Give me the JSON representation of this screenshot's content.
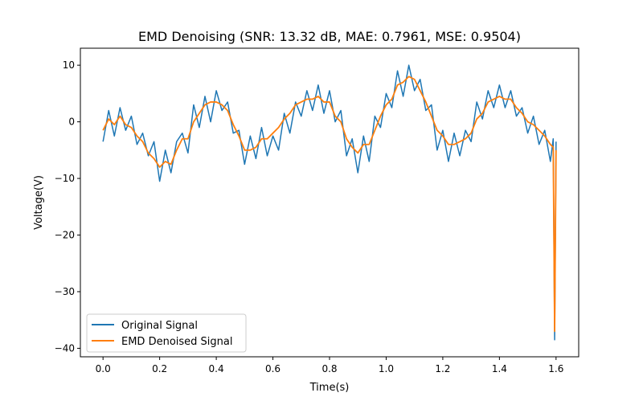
{
  "chart_data": {
    "type": "line",
    "title": "EMD Denoising (SNR: 13.32 dB, MAE: 0.7961, MSE: 0.9504)",
    "xlabel": "Time(s)",
    "ylabel": "Voltage(V)",
    "xlim": [
      -0.08,
      1.68
    ],
    "ylim": [
      -41.5,
      13
    ],
    "xticks": [
      0.0,
      0.2,
      0.4,
      0.6,
      0.8,
      1.0,
      1.2,
      1.4,
      1.6
    ],
    "xtick_labels": [
      "0.0",
      "0.2",
      "0.4",
      "0.6",
      "0.8",
      "1.0",
      "1.2",
      "1.4",
      "1.6"
    ],
    "yticks": [
      10,
      0,
      -10,
      -20,
      -30,
      -40
    ],
    "ytick_labels": [
      "10",
      "0",
      "−10",
      "−20",
      "−30",
      "−40"
    ],
    "grid": false,
    "legend_position": "lower-left",
    "series": [
      {
        "name": "Original Signal",
        "color": "#1f77b4",
        "x": [
          0.0,
          0.02,
          0.04,
          0.06,
          0.08,
          0.1,
          0.12,
          0.14,
          0.16,
          0.18,
          0.2,
          0.22,
          0.24,
          0.26,
          0.28,
          0.3,
          0.32,
          0.34,
          0.36,
          0.38,
          0.4,
          0.42,
          0.44,
          0.46,
          0.48,
          0.5,
          0.52,
          0.54,
          0.56,
          0.58,
          0.6,
          0.62,
          0.64,
          0.66,
          0.68,
          0.7,
          0.72,
          0.74,
          0.76,
          0.78,
          0.8,
          0.82,
          0.84,
          0.86,
          0.88,
          0.9,
          0.92,
          0.94,
          0.96,
          0.98,
          1.0,
          1.02,
          1.04,
          1.06,
          1.08,
          1.1,
          1.12,
          1.14,
          1.16,
          1.18,
          1.2,
          1.22,
          1.24,
          1.26,
          1.28,
          1.3,
          1.32,
          1.34,
          1.36,
          1.38,
          1.4,
          1.42,
          1.44,
          1.46,
          1.48,
          1.5,
          1.52,
          1.54,
          1.56,
          1.58,
          1.59,
          1.595,
          1.6
        ],
        "y": [
          -3.5,
          2.0,
          -2.5,
          2.5,
          -1.5,
          1.0,
          -4.0,
          -2.0,
          -6.0,
          -3.5,
          -10.5,
          -5.0,
          -9.0,
          -3.5,
          -2.0,
          -5.5,
          3.0,
          -1.0,
          4.5,
          0.0,
          5.5,
          2.0,
          3.5,
          -2.0,
          -1.5,
          -7.5,
          -2.5,
          -6.5,
          -1.0,
          -6.0,
          -2.5,
          -5.0,
          1.5,
          -2.0,
          3.5,
          1.0,
          5.5,
          2.0,
          6.5,
          1.5,
          5.5,
          0.0,
          2.0,
          -6.0,
          -3.0,
          -9.0,
          -2.5,
          -7.0,
          1.0,
          -1.0,
          5.0,
          2.5,
          9.0,
          4.5,
          10.0,
          5.5,
          7.5,
          2.0,
          3.0,
          -5.0,
          -1.5,
          -7.0,
          -2.0,
          -6.0,
          -1.5,
          -3.5,
          3.5,
          0.5,
          5.5,
          2.5,
          6.5,
          2.5,
          5.5,
          1.0,
          2.5,
          -2.0,
          1.0,
          -4.0,
          -1.5,
          -7.0,
          -3.0,
          -38.5,
          -3.5
        ]
      },
      {
        "name": "EMD Denoised Signal",
        "color": "#ff7f0e",
        "x": [
          0.0,
          0.02,
          0.04,
          0.06,
          0.08,
          0.1,
          0.12,
          0.14,
          0.16,
          0.18,
          0.2,
          0.22,
          0.24,
          0.26,
          0.28,
          0.3,
          0.32,
          0.34,
          0.36,
          0.38,
          0.4,
          0.42,
          0.44,
          0.46,
          0.48,
          0.5,
          0.52,
          0.54,
          0.56,
          0.58,
          0.6,
          0.62,
          0.64,
          0.66,
          0.68,
          0.7,
          0.72,
          0.74,
          0.76,
          0.78,
          0.8,
          0.82,
          0.84,
          0.86,
          0.88,
          0.9,
          0.92,
          0.94,
          0.96,
          0.98,
          1.0,
          1.02,
          1.04,
          1.06,
          1.08,
          1.1,
          1.12,
          1.14,
          1.16,
          1.18,
          1.2,
          1.22,
          1.24,
          1.26,
          1.28,
          1.3,
          1.32,
          1.34,
          1.36,
          1.38,
          1.4,
          1.42,
          1.44,
          1.46,
          1.48,
          1.5,
          1.52,
          1.54,
          1.56,
          1.58,
          1.59,
          1.595,
          1.6
        ],
        "y": [
          -1.5,
          0.5,
          -0.5,
          1.0,
          -0.5,
          -1.0,
          -2.5,
          -3.5,
          -5.5,
          -6.5,
          -8.0,
          -7.0,
          -7.5,
          -5.0,
          -3.0,
          -3.0,
          0.0,
          1.5,
          3.0,
          3.5,
          3.5,
          3.0,
          2.0,
          -0.5,
          -2.5,
          -5.0,
          -5.0,
          -4.5,
          -3.0,
          -3.0,
          -2.0,
          -1.0,
          0.5,
          1.5,
          3.0,
          3.5,
          4.0,
          4.0,
          4.5,
          3.5,
          3.5,
          1.0,
          0.0,
          -3.0,
          -4.5,
          -5.5,
          -4.0,
          -4.0,
          -1.5,
          1.0,
          3.0,
          4.0,
          6.5,
          7.0,
          8.0,
          7.5,
          5.5,
          3.5,
          1.0,
          -1.5,
          -2.5,
          -4.0,
          -4.0,
          -3.5,
          -3.0,
          -2.0,
          0.5,
          1.5,
          3.5,
          4.0,
          4.5,
          4.0,
          4.0,
          2.5,
          1.5,
          0.0,
          -0.5,
          -1.5,
          -2.5,
          -4.0,
          -4.5,
          -37.0,
          -5.0
        ]
      }
    ]
  }
}
